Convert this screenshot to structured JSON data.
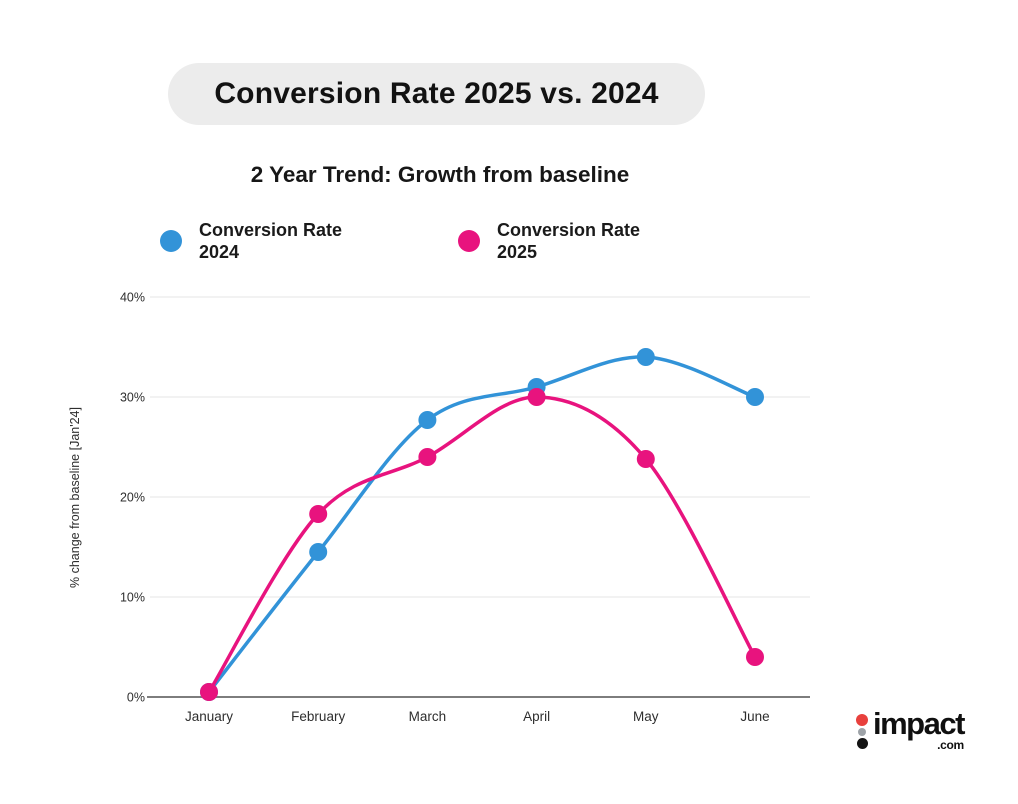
{
  "title": "Conversion Rate 2025 vs. 2024",
  "subtitle": "2 Year Trend: Growth from baseline",
  "legend": [
    {
      "label_line1": "Conversion Rate",
      "label_line2": "2024",
      "color": "#3293D8"
    },
    {
      "label_line1": "Conversion Rate",
      "label_line2": "2025",
      "color": "#E8137E"
    }
  ],
  "chart_data": {
    "type": "line",
    "categories": [
      "January",
      "February",
      "March",
      "April",
      "May",
      "June"
    ],
    "series": [
      {
        "name": "Conversion Rate 2024",
        "color": "#3293D8",
        "values": [
          0.5,
          14.5,
          27.7,
          31,
          34,
          30
        ]
      },
      {
        "name": "Conversion Rate 2025",
        "color": "#E8137E",
        "values": [
          0.5,
          18.3,
          24,
          30,
          23.8,
          4
        ]
      }
    ],
    "title": "Conversion Rate 2025 vs. 2024",
    "xlabel": "",
    "ylabel": "% change from baseline [Jan'24]",
    "yticks": [
      0,
      10,
      20,
      30,
      40
    ],
    "tick_suffix": "%",
    "ylim": [
      0,
      40
    ],
    "grid": true,
    "smooth": true,
    "marker": "circle",
    "legend_position": "top",
    "grid_color": "#E6E6E6",
    "axis_color": "#7D7D7D"
  },
  "logo": {
    "text": "impact",
    "suffix": ".com",
    "dot_colors": [
      "#E8403D",
      "#9EA3A8",
      "#131313"
    ]
  },
  "colors": {
    "background": "#FFFFFF",
    "pill_bg": "#ECECEC",
    "text": "#111111"
  }
}
